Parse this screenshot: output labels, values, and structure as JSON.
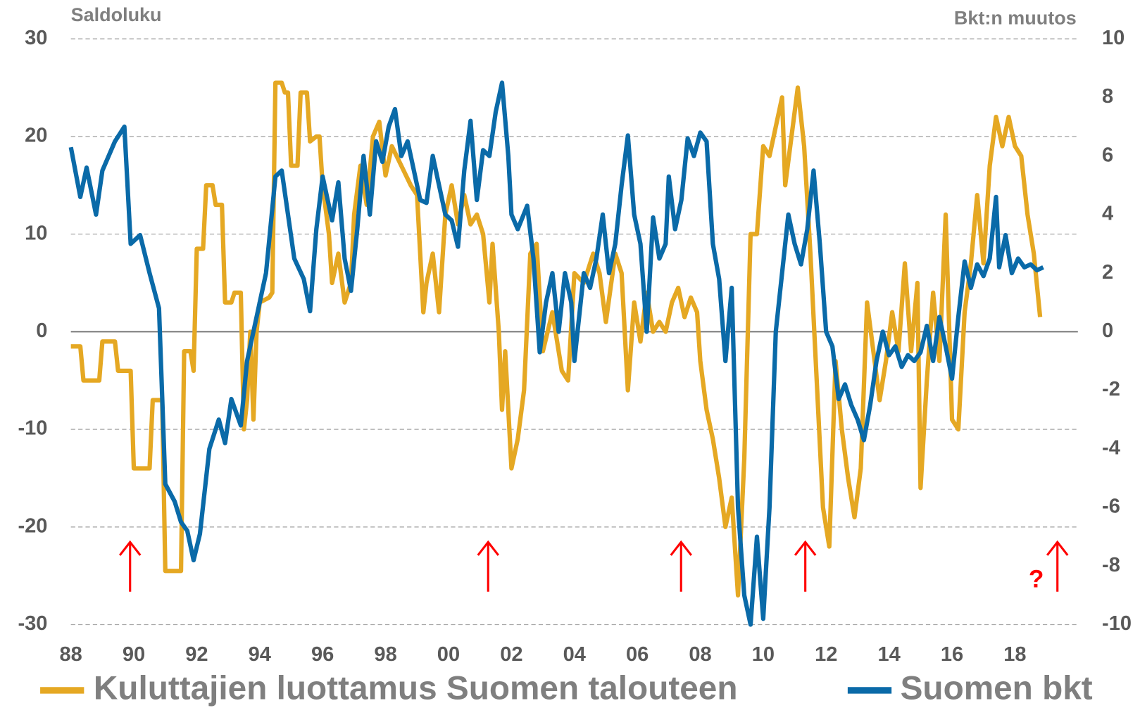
{
  "chart_data": {
    "type": "line",
    "y_label": "Saldoluku",
    "y2_label": "Bkt:n muutos",
    "annotations": [
      "?"
    ],
    "xlim": [
      1988,
      2020
    ],
    "xticks": [
      {
        "value": 1988,
        "label": "88"
      },
      {
        "value": 1990,
        "label": "90"
      },
      {
        "value": 1992,
        "label": "92"
      },
      {
        "value": 1994,
        "label": "94"
      },
      {
        "value": 1996,
        "label": "96"
      },
      {
        "value": 1998,
        "label": "98"
      },
      {
        "value": 2000,
        "label": "00"
      },
      {
        "value": 2002,
        "label": "02"
      },
      {
        "value": 2004,
        "label": "04"
      },
      {
        "value": 2006,
        "label": "06"
      },
      {
        "value": 2008,
        "label": "08"
      },
      {
        "value": 2010,
        "label": "10"
      },
      {
        "value": 2012,
        "label": "12"
      },
      {
        "value": 2014,
        "label": "14"
      },
      {
        "value": 2016,
        "label": "16"
      },
      {
        "value": 2018,
        "label": "18"
      }
    ],
    "ylim": [
      -30,
      30
    ],
    "yticks": [
      30,
      20,
      10,
      0,
      -10,
      -20,
      -30
    ],
    "y2lim": [
      -10,
      10
    ],
    "y2ticks": [
      10,
      8,
      6,
      4,
      2,
      0,
      -2,
      -4,
      -6,
      -8,
      -10
    ],
    "grid": true,
    "series": [
      {
        "name": "Kuluttajien luottamus Suomen talouteen",
        "color": "#e5a823",
        "x": [
          1988.0,
          1988.3,
          1988.4,
          1988.9,
          1989.0,
          1989.4,
          1989.5,
          1989.9,
          1990.0,
          1990.5,
          1990.6,
          1990.9,
          1991.0,
          1991.5,
          1991.6,
          1991.8,
          1991.9,
          1992.0,
          1992.2,
          1992.3,
          1992.5,
          1992.6,
          1992.8,
          1992.9,
          1993.1,
          1993.2,
          1993.4,
          1993.5,
          1993.6,
          1993.7,
          1993.8,
          1993.9,
          1994.0,
          1994.3,
          1994.4,
          1994.5,
          1994.7,
          1994.8,
          1994.9,
          1995.0,
          1995.2,
          1995.3,
          1995.5,
          1995.6,
          1995.8,
          1995.9,
          1996.0,
          1996.2,
          1996.3,
          1996.5,
          1996.7,
          1996.9,
          1997.0,
          1997.2,
          1997.4,
          1997.6,
          1997.8,
          1998.0,
          1998.2,
          1998.5,
          1998.8,
          1999.0,
          1999.2,
          1999.3,
          1999.5,
          1999.7,
          1999.9,
          2000.1,
          2000.3,
          2000.5,
          2000.7,
          2000.9,
          2001.1,
          2001.3,
          2001.4,
          2001.6,
          2001.7,
          2001.8,
          2002.0,
          2002.2,
          2002.4,
          2002.6,
          2002.8,
          2003.0,
          2003.3,
          2003.6,
          2003.8,
          2004.0,
          2004.3,
          2004.6,
          2004.8,
          2005.0,
          2005.3,
          2005.5,
          2005.7,
          2005.9,
          2006.1,
          2006.3,
          2006.5,
          2006.7,
          2006.9,
          2007.1,
          2007.3,
          2007.5,
          2007.7,
          2007.9,
          2008.0,
          2008.2,
          2008.4,
          2008.6,
          2008.8,
          2009.0,
          2009.2,
          2009.4,
          2009.6,
          2009.8,
          2010.0,
          2010.2,
          2010.4,
          2010.6,
          2010.7,
          2010.9,
          2011.1,
          2011.3,
          2011.5,
          2011.7,
          2011.9,
          2012.1,
          2012.3,
          2012.5,
          2012.7,
          2012.9,
          2013.1,
          2013.3,
          2013.5,
          2013.7,
          2013.9,
          2014.1,
          2014.3,
          2014.5,
          2014.7,
          2014.9,
          2015.0,
          2015.2,
          2015.4,
          2015.6,
          2015.8,
          2016.0,
          2016.2,
          2016.4,
          2016.6,
          2016.8,
          2017.0,
          2017.2,
          2017.4,
          2017.6,
          2017.8,
          2018.0,
          2018.2,
          2018.4,
          2018.6,
          2018.8
        ],
        "values": [
          -1.5,
          -1.5,
          -5,
          -5,
          -1,
          -1,
          -4,
          -4,
          -14,
          -14,
          -7,
          -7,
          -24.5,
          -24.5,
          -2,
          -2,
          -4,
          8.5,
          8.5,
          15,
          15,
          13,
          13,
          3,
          3,
          4,
          4,
          -10,
          -7,
          0,
          -9,
          0,
          3,
          3.5,
          4,
          25.5,
          25.5,
          24.5,
          24.5,
          17,
          17,
          24.5,
          24.5,
          19.5,
          20,
          20,
          15,
          10,
          5,
          8,
          3,
          5,
          12,
          17,
          13,
          20,
          21.5,
          16,
          19,
          17,
          15,
          14,
          2,
          5,
          8,
          2,
          12,
          15,
          11,
          14,
          11,
          12,
          10,
          3,
          9,
          0,
          -8,
          -2,
          -14,
          -11,
          -6,
          8,
          9,
          -2,
          2,
          -4,
          -5,
          6,
          5,
          8,
          6,
          1,
          8,
          6,
          -6,
          3,
          -1,
          4,
          0,
          1,
          0,
          3,
          4.5,
          1.5,
          3.5,
          2,
          -3,
          -8,
          -11,
          -15,
          -20,
          -17,
          -27,
          -13,
          10,
          10,
          19,
          18,
          21,
          24,
          15,
          20,
          25,
          19,
          8,
          -5,
          -18,
          -22,
          -3,
          -10,
          -15,
          -19,
          -14,
          3,
          -2,
          -7,
          -3,
          2,
          -2,
          7,
          -2,
          5,
          -16,
          -5,
          4,
          -3,
          12,
          -9,
          -10,
          2,
          7,
          14,
          7,
          17,
          22,
          19,
          22,
          19,
          18,
          12,
          8,
          1.5
        ]
      },
      {
        "name": "Suomen bkt",
        "color": "#0a6aa8",
        "axis": "y2",
        "x": [
          1988.0,
          1988.3,
          1988.5,
          1988.8,
          1989.0,
          1989.4,
          1989.7,
          1989.9,
          1990.2,
          1990.5,
          1990.8,
          1991.0,
          1991.3,
          1991.5,
          1991.7,
          1991.9,
          1992.1,
          1992.4,
          1992.7,
          1992.9,
          1993.1,
          1993.4,
          1993.6,
          1993.9,
          1994.2,
          1994.5,
          1994.7,
          1994.9,
          1995.1,
          1995.4,
          1995.6,
          1995.8,
          1996.0,
          1996.3,
          1996.5,
          1996.7,
          1996.9,
          1997.1,
          1997.3,
          1997.5,
          1997.7,
          1997.9,
          1998.1,
          1998.3,
          1998.5,
          1998.7,
          1998.9,
          1999.1,
          1999.3,
          1999.5,
          1999.7,
          1999.9,
          2000.1,
          2000.3,
          2000.5,
          2000.7,
          2000.9,
          2001.1,
          2001.3,
          2001.5,
          2001.7,
          2001.9,
          2002.0,
          2002.2,
          2002.5,
          2002.7,
          2002.9,
          2003.1,
          2003.3,
          2003.5,
          2003.7,
          2003.9,
          2004.0,
          2004.3,
          2004.5,
          2004.7,
          2004.9,
          2005.1,
          2005.3,
          2005.5,
          2005.7,
          2005.9,
          2006.1,
          2006.3,
          2006.5,
          2006.7,
          2006.9,
          2007.0,
          2007.2,
          2007.4,
          2007.6,
          2007.8,
          2008.0,
          2008.2,
          2008.4,
          2008.6,
          2008.8,
          2009.0,
          2009.2,
          2009.4,
          2009.6,
          2009.8,
          2010.0,
          2010.2,
          2010.4,
          2010.6,
          2010.8,
          2011.0,
          2011.2,
          2011.4,
          2011.6,
          2011.8,
          2012.0,
          2012.2,
          2012.4,
          2012.6,
          2012.8,
          2013.0,
          2013.2,
          2013.4,
          2013.6,
          2013.8,
          2014.0,
          2014.2,
          2014.4,
          2014.6,
          2014.8,
          2015.0,
          2015.2,
          2015.4,
          2015.6,
          2015.8,
          2016.0,
          2016.2,
          2016.4,
          2016.6,
          2016.8,
          2017.0,
          2017.2,
          2017.4,
          2017.5,
          2017.7,
          2017.9,
          2018.1,
          2018.3,
          2018.5,
          2018.7,
          2018.9
        ],
        "values": [
          6.3,
          4.6,
          5.6,
          4,
          5.5,
          6.5,
          7,
          3,
          3.3,
          2,
          0.8,
          -5.2,
          -5.8,
          -6.5,
          -6.8,
          -7.8,
          -6.9,
          -4,
          -3,
          -3.8,
          -2.3,
          -3.2,
          -1,
          0.5,
          2,
          5.3,
          5.5,
          4,
          2.5,
          1.8,
          0.7,
          3.5,
          5.3,
          3.8,
          5.1,
          2.5,
          1.4,
          3.5,
          6,
          4,
          6.5,
          5.8,
          7,
          7.6,
          6,
          6.5,
          5.5,
          4.5,
          4.4,
          6,
          5,
          4,
          3.8,
          2.9,
          5.5,
          7.2,
          4.5,
          6.2,
          6,
          7.5,
          8.5,
          6,
          4,
          3.5,
          4.3,
          2.5,
          -0.7,
          1,
          2,
          0,
          2,
          1,
          -1,
          2,
          1.5,
          2.5,
          4,
          2,
          3,
          5,
          6.7,
          4,
          3,
          0,
          3.9,
          2.5,
          3,
          5.3,
          3.5,
          4.5,
          6.6,
          6,
          6.8,
          6.5,
          3,
          1.8,
          -1,
          1.5,
          -6,
          -9,
          -10,
          -7,
          -9.8,
          -6,
          0,
          2,
          4,
          3,
          2.3,
          3.5,
          5.5,
          3,
          0,
          -0.5,
          -2.3,
          -1.8,
          -2.5,
          -3,
          -3.7,
          -2.5,
          -1,
          0,
          -0.8,
          -0.5,
          -1.2,
          -0.8,
          -1,
          -0.7,
          0.2,
          -1,
          0.5,
          -0.5,
          -1.6,
          0.5,
          2.4,
          1.5,
          2.3,
          1.9,
          2.5,
          4.6,
          2.2,
          3.3,
          2,
          2.5,
          2.2,
          2.3,
          2.1,
          2.2
        ]
      }
    ]
  }
}
